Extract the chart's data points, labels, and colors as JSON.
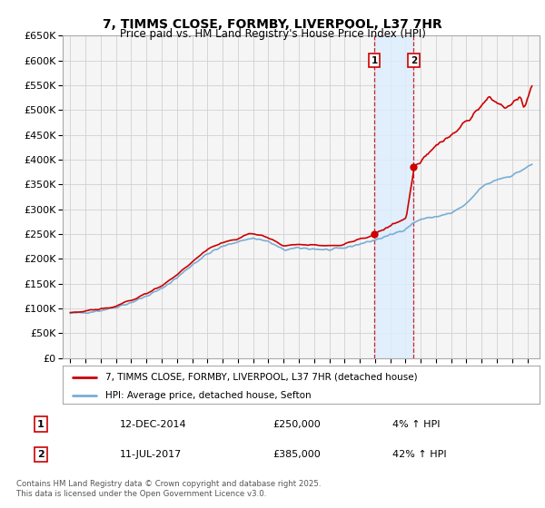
{
  "title": "7, TIMMS CLOSE, FORMBY, LIVERPOOL, L37 7HR",
  "subtitle": "Price paid vs. HM Land Registry's House Price Index (HPI)",
  "legend_line1": "7, TIMMS CLOSE, FORMBY, LIVERPOOL, L37 7HR (detached house)",
  "legend_line2": "HPI: Average price, detached house, Sefton",
  "transaction1_date": "12-DEC-2014",
  "transaction1_price": "£250,000",
  "transaction1_hpi": "4% ↑ HPI",
  "transaction2_date": "11-JUL-2017",
  "transaction2_price": "£385,000",
  "transaction2_hpi": "42% ↑ HPI",
  "footer": "Contains HM Land Registry data © Crown copyright and database right 2025.\nThis data is licensed under the Open Government Licence v3.0.",
  "red_color": "#cc0000",
  "blue_color": "#7aadd4",
  "shade_color": "#ddeeff",
  "ylim": [
    0,
    650000
  ],
  "yticks": [
    0,
    50000,
    100000,
    150000,
    200000,
    250000,
    300000,
    350000,
    400000,
    450000,
    500000,
    550000,
    600000,
    650000
  ],
  "background_color": "#ffffff",
  "chart_bg": "#f5f5f5",
  "grid_color": "#d0d0d0",
  "transaction1_year": 2014.95,
  "transaction2_year": 2017.54,
  "xlim_min": 1994.5,
  "xlim_max": 2025.8
}
